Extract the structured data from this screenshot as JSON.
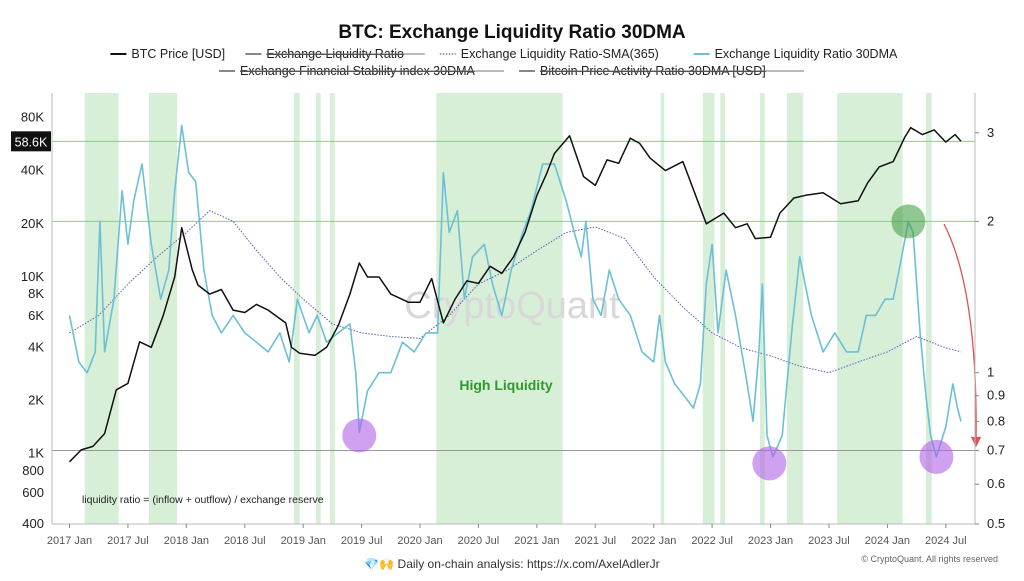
{
  "chart_data": {
    "type": "line",
    "title": "BTC: Exchange Liquidity Ratio 30DMA",
    "legend": [
      {
        "name": "BTC Price [USD]",
        "color": "#111111",
        "style": "solid",
        "hidden": false
      },
      {
        "name": "Exchange Liquidity Ratio",
        "color": "#888888",
        "style": "solid",
        "hidden": true
      },
      {
        "name": "Exchange Liquidity Ratio-SMA(365)",
        "color": "#5a5ab4",
        "style": "dotted",
        "hidden": false
      },
      {
        "name": "Exchange Liquidity Ratio 30DMA",
        "color": "#6cc0d6",
        "style": "solid",
        "hidden": false
      },
      {
        "name": "Exchange Financial Stability index 30DMA",
        "color": "#888888",
        "style": "solid",
        "hidden": true
      },
      {
        "name": "Bitcoin Price Activity Ratio 30DMA [USD]",
        "color": "#888888",
        "style": "solid",
        "hidden": true
      }
    ],
    "x_ticks": [
      "2017 Jan",
      "2017 Jul",
      "2018 Jan",
      "2018 Jul",
      "2019 Jan",
      "2019 Jul",
      "2020 Jan",
      "2020 Jul",
      "2021 Jan",
      "2021 Jul",
      "2022 Jan",
      "2022 Jul",
      "2023 Jan",
      "2023 Jul",
      "2024 Jan",
      "2024 Jul"
    ],
    "x_tick_times": [
      2017.0,
      2017.5,
      2018.0,
      2018.5,
      2019.0,
      2019.5,
      2020.0,
      2020.5,
      2021.0,
      2021.5,
      2022.0,
      2022.5,
      2023.0,
      2023.5,
      2024.0,
      2024.5
    ],
    "x_range": [
      2016.85,
      2024.75
    ],
    "y_left": {
      "scale": "log",
      "range": [
        400,
        110000
      ],
      "ticks": [
        400,
        600,
        800,
        1000,
        2000,
        4000,
        6000,
        8000,
        10000,
        20000,
        40000,
        80000
      ],
      "tick_labels": [
        "400",
        "600",
        "800",
        "1K",
        "2K",
        "4K",
        "6K",
        "8K",
        "10K",
        "20K",
        "40K",
        "80K"
      ]
    },
    "y_right": {
      "scale": "log",
      "range": [
        0.5,
        3.6
      ],
      "ticks": [
        0.5,
        0.6,
        0.7,
        0.8,
        0.9,
        1,
        2,
        3
      ],
      "tick_labels": [
        "0.5",
        "0.6",
        "0.7",
        "0.8",
        "0.9",
        "1",
        "2",
        "3"
      ]
    },
    "current_price_label": "58.6K",
    "current_price": 58600,
    "reference_lines": [
      {
        "axis": "right",
        "value": 2,
        "color": "#8ec98e"
      },
      {
        "axis": "right",
        "value": 0.7,
        "color": "#999999"
      },
      {
        "axis": "left",
        "value": 58600,
        "color": "#8ec98e"
      }
    ],
    "high_liquidity_periods": [
      [
        2017.13,
        2017.42
      ],
      [
        2017.68,
        2017.92
      ],
      [
        2018.92,
        2018.97
      ],
      [
        2019.11,
        2019.15
      ],
      [
        2019.23,
        2019.27
      ],
      [
        2020.14,
        2021.22
      ],
      [
        2022.06,
        2022.09
      ],
      [
        2022.42,
        2022.52
      ],
      [
        2022.57,
        2022.61
      ],
      [
        2022.91,
        2022.95
      ],
      [
        2023.14,
        2023.28
      ],
      [
        2023.57,
        2024.13
      ],
      [
        2024.33,
        2024.38
      ]
    ],
    "btc_price": [
      [
        2017.0,
        900
      ],
      [
        2017.1,
        1050
      ],
      [
        2017.2,
        1100
      ],
      [
        2017.3,
        1300
      ],
      [
        2017.4,
        2300
      ],
      [
        2017.5,
        2500
      ],
      [
        2017.6,
        4300
      ],
      [
        2017.7,
        4000
      ],
      [
        2017.8,
        6000
      ],
      [
        2017.9,
        10000
      ],
      [
        2017.96,
        19000
      ],
      [
        2018.05,
        11000
      ],
      [
        2018.1,
        9000
      ],
      [
        2018.2,
        8000
      ],
      [
        2018.3,
        8500
      ],
      [
        2018.4,
        6500
      ],
      [
        2018.5,
        6300
      ],
      [
        2018.6,
        7000
      ],
      [
        2018.7,
        6500
      ],
      [
        2018.85,
        5500
      ],
      [
        2018.9,
        4000
      ],
      [
        2018.97,
        3700
      ],
      [
        2019.1,
        3600
      ],
      [
        2019.2,
        4000
      ],
      [
        2019.3,
        5300
      ],
      [
        2019.4,
        8000
      ],
      [
        2019.48,
        12000
      ],
      [
        2019.55,
        10000
      ],
      [
        2019.65,
        10000
      ],
      [
        2019.75,
        8000
      ],
      [
        2019.9,
        7200
      ],
      [
        2020.0,
        7200
      ],
      [
        2020.1,
        9800
      ],
      [
        2020.2,
        5500
      ],
      [
        2020.3,
        7500
      ],
      [
        2020.4,
        9500
      ],
      [
        2020.5,
        9200
      ],
      [
        2020.6,
        11500
      ],
      [
        2020.7,
        10500
      ],
      [
        2020.8,
        13000
      ],
      [
        2020.9,
        18000
      ],
      [
        2021.0,
        29000
      ],
      [
        2021.08,
        38000
      ],
      [
        2021.15,
        50000
      ],
      [
        2021.28,
        63000
      ],
      [
        2021.4,
        37000
      ],
      [
        2021.5,
        33000
      ],
      [
        2021.6,
        46000
      ],
      [
        2021.7,
        44000
      ],
      [
        2021.8,
        61000
      ],
      [
        2021.88,
        57000
      ],
      [
        2021.97,
        47000
      ],
      [
        2022.1,
        40000
      ],
      [
        2022.25,
        45000
      ],
      [
        2022.35,
        30000
      ],
      [
        2022.45,
        20000
      ],
      [
        2022.6,
        23000
      ],
      [
        2022.7,
        19000
      ],
      [
        2022.8,
        20000
      ],
      [
        2022.87,
        16500
      ],
      [
        2023.0,
        16800
      ],
      [
        2023.08,
        23000
      ],
      [
        2023.2,
        28000
      ],
      [
        2023.3,
        29000
      ],
      [
        2023.45,
        30000
      ],
      [
        2023.6,
        26000
      ],
      [
        2023.75,
        27000
      ],
      [
        2023.83,
        34000
      ],
      [
        2023.93,
        42000
      ],
      [
        2024.05,
        45000
      ],
      [
        2024.15,
        62000
      ],
      [
        2024.2,
        70000
      ],
      [
        2024.3,
        64000
      ],
      [
        2024.4,
        68000
      ],
      [
        2024.5,
        58000
      ],
      [
        2024.58,
        64000
      ],
      [
        2024.63,
        58600
      ]
    ],
    "liquidity_ratio_30dma": [
      [
        2017.0,
        1.3
      ],
      [
        2017.08,
        1.05
      ],
      [
        2017.15,
        1.0
      ],
      [
        2017.22,
        1.1
      ],
      [
        2017.26,
        2.0
      ],
      [
        2017.3,
        1.1
      ],
      [
        2017.38,
        1.4
      ],
      [
        2017.45,
        2.3
      ],
      [
        2017.5,
        1.8
      ],
      [
        2017.55,
        2.2
      ],
      [
        2017.62,
        2.6
      ],
      [
        2017.7,
        1.8
      ],
      [
        2017.78,
        1.4
      ],
      [
        2017.85,
        1.6
      ],
      [
        2017.9,
        2.3
      ],
      [
        2017.96,
        3.1
      ],
      [
        2018.02,
        2.5
      ],
      [
        2018.08,
        2.4
      ],
      [
        2018.15,
        1.6
      ],
      [
        2018.22,
        1.3
      ],
      [
        2018.3,
        1.2
      ],
      [
        2018.4,
        1.3
      ],
      [
        2018.5,
        1.2
      ],
      [
        2018.6,
        1.15
      ],
      [
        2018.7,
        1.1
      ],
      [
        2018.8,
        1.2
      ],
      [
        2018.88,
        1.05
      ],
      [
        2018.95,
        1.4
      ],
      [
        2019.05,
        1.2
      ],
      [
        2019.12,
        1.3
      ],
      [
        2019.2,
        1.15
      ],
      [
        2019.3,
        1.2
      ],
      [
        2019.4,
        1.25
      ],
      [
        2019.45,
        1.0
      ],
      [
        2019.48,
        0.76
      ],
      [
        2019.55,
        0.92
      ],
      [
        2019.65,
        1.0
      ],
      [
        2019.75,
        1.0
      ],
      [
        2019.85,
        1.15
      ],
      [
        2019.95,
        1.1
      ],
      [
        2020.05,
        1.2
      ],
      [
        2020.15,
        1.2
      ],
      [
        2020.2,
        2.5
      ],
      [
        2020.25,
        1.9
      ],
      [
        2020.32,
        2.1
      ],
      [
        2020.38,
        1.4
      ],
      [
        2020.45,
        1.7
      ],
      [
        2020.55,
        1.8
      ],
      [
        2020.62,
        1.5
      ],
      [
        2020.7,
        1.3
      ],
      [
        2020.78,
        1.6
      ],
      [
        2020.88,
        1.9
      ],
      [
        2020.95,
        2.1
      ],
      [
        2021.05,
        2.6
      ],
      [
        2021.15,
        2.6
      ],
      [
        2021.25,
        2.2
      ],
      [
        2021.32,
        1.9
      ],
      [
        2021.38,
        1.7
      ],
      [
        2021.42,
        2.0
      ],
      [
        2021.48,
        1.4
      ],
      [
        2021.55,
        1.3
      ],
      [
        2021.62,
        1.6
      ],
      [
        2021.7,
        1.4
      ],
      [
        2021.8,
        1.3
      ],
      [
        2021.9,
        1.1
      ],
      [
        2022.0,
        1.05
      ],
      [
        2022.05,
        1.3
      ],
      [
        2022.1,
        1.05
      ],
      [
        2022.18,
        0.95
      ],
      [
        2022.26,
        0.9
      ],
      [
        2022.34,
        0.85
      ],
      [
        2022.4,
        0.95
      ],
      [
        2022.45,
        1.5
      ],
      [
        2022.5,
        1.8
      ],
      [
        2022.55,
        1.2
      ],
      [
        2022.62,
        1.6
      ],
      [
        2022.7,
        1.3
      ],
      [
        2022.8,
        0.95
      ],
      [
        2022.85,
        0.8
      ],
      [
        2022.9,
        1.1
      ],
      [
        2022.93,
        1.5
      ],
      [
        2022.97,
        0.75
      ],
      [
        2023.02,
        0.68
      ],
      [
        2023.1,
        0.75
      ],
      [
        2023.18,
        1.2
      ],
      [
        2023.25,
        1.7
      ],
      [
        2023.35,
        1.3
      ],
      [
        2023.45,
        1.1
      ],
      [
        2023.55,
        1.2
      ],
      [
        2023.65,
        1.1
      ],
      [
        2023.75,
        1.1
      ],
      [
        2023.82,
        1.3
      ],
      [
        2023.9,
        1.3
      ],
      [
        2023.98,
        1.4
      ],
      [
        2024.05,
        1.4
      ],
      [
        2024.1,
        1.6
      ],
      [
        2024.18,
        2.0
      ],
      [
        2024.22,
        1.9
      ],
      [
        2024.28,
        1.2
      ],
      [
        2024.33,
        0.9
      ],
      [
        2024.37,
        0.75
      ],
      [
        2024.42,
        0.68
      ],
      [
        2024.5,
        0.78
      ],
      [
        2024.56,
        0.95
      ],
      [
        2024.6,
        0.85
      ],
      [
        2024.63,
        0.8
      ]
    ],
    "liquidity_ratio_sma365": [
      [
        2017.0,
        1.2
      ],
      [
        2017.25,
        1.3
      ],
      [
        2017.5,
        1.5
      ],
      [
        2017.75,
        1.7
      ],
      [
        2018.0,
        1.9
      ],
      [
        2018.2,
        2.1
      ],
      [
        2018.4,
        2.0
      ],
      [
        2018.6,
        1.75
      ],
      [
        2018.8,
        1.55
      ],
      [
        2019.0,
        1.4
      ],
      [
        2019.25,
        1.25
      ],
      [
        2019.5,
        1.2
      ],
      [
        2019.75,
        1.18
      ],
      [
        2020.0,
        1.17
      ],
      [
        2020.25,
        1.3
      ],
      [
        2020.5,
        1.5
      ],
      [
        2020.75,
        1.6
      ],
      [
        2021.0,
        1.75
      ],
      [
        2021.25,
        1.9
      ],
      [
        2021.5,
        1.95
      ],
      [
        2021.75,
        1.85
      ],
      [
        2022.0,
        1.55
      ],
      [
        2022.25,
        1.35
      ],
      [
        2022.5,
        1.2
      ],
      [
        2022.75,
        1.12
      ],
      [
        2023.0,
        1.08
      ],
      [
        2023.25,
        1.03
      ],
      [
        2023.5,
        1.0
      ],
      [
        2023.75,
        1.05
      ],
      [
        2024.0,
        1.1
      ],
      [
        2024.25,
        1.18
      ],
      [
        2024.5,
        1.12
      ],
      [
        2024.63,
        1.1
      ]
    ],
    "markers": [
      {
        "x": 2019.48,
        "axis": "right",
        "value": 0.75,
        "color": "#b060e8",
        "label": "low-liquidity-marker-2019"
      },
      {
        "x": 2022.99,
        "axis": "right",
        "value": 0.66,
        "color": "#b060e8",
        "label": "low-liquidity-marker-2022"
      },
      {
        "x": 2024.42,
        "axis": "right",
        "value": 0.68,
        "color": "#b060e8",
        "label": "low-liquidity-marker-2024"
      },
      {
        "x": 2024.18,
        "axis": "right",
        "value": 2.0,
        "color": "#4aa04a",
        "label": "peak-liquidity-marker-2024"
      }
    ],
    "annotations": {
      "high_liquidity_label": "High Liquidity",
      "formula": "liquidity ratio = (inflow + outflow) / exchange reserve",
      "watermark": "CryptoQuant",
      "credit": "© CryptoQuant. All rights reserved",
      "footer": "💎🙌 Daily on-chain analysis: https://x.com/AxelAdlerJr"
    }
  }
}
